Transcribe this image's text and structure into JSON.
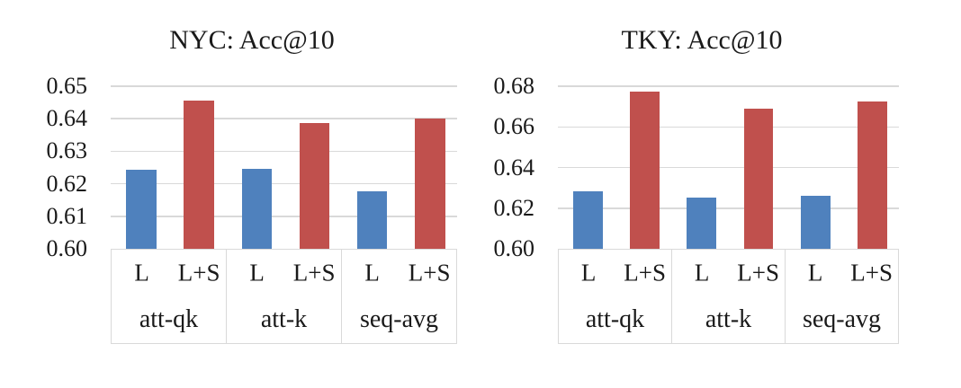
{
  "figure": {
    "background": "#ffffff",
    "text_color": "#1a1a1a",
    "gridline_color": "#d9d9d9"
  },
  "chart_data": [
    {
      "type": "bar",
      "title": "NYC: Acc@10",
      "categories": [
        "att-qk",
        "att-k",
        "seq-avg"
      ],
      "bar_labels": [
        "L",
        "L+S"
      ],
      "series": [
        {
          "name": "L",
          "color": "#4F81BD",
          "values": [
            0.6244,
            0.6247,
            0.6177
          ]
        },
        {
          "name": "L+S",
          "color": "#C0504D",
          "values": [
            0.6455,
            0.6386,
            0.6401
          ]
        }
      ],
      "ylim": [
        0.6,
        0.65
      ],
      "y_ticks": [
        0.65,
        0.64,
        0.63,
        0.62,
        0.61,
        0.6
      ],
      "y_tick_labels": [
        "0.65",
        "0.64",
        "0.63",
        "0.62",
        "0.61",
        "0.60"
      ],
      "grid": true,
      "legend": "none"
    },
    {
      "type": "bar",
      "title": "TKY: Acc@10",
      "categories": [
        "att-qk",
        "att-k",
        "seq-avg"
      ],
      "bar_labels": [
        "L",
        "L+S"
      ],
      "series": [
        {
          "name": "L",
          "color": "#4F81BD",
          "values": [
            0.6285,
            0.6252,
            0.6263
          ]
        },
        {
          "name": "L+S",
          "color": "#C0504D",
          "values": [
            0.6772,
            0.669,
            0.6723
          ]
        }
      ],
      "ylim": [
        0.6,
        0.68
      ],
      "y_ticks": [
        0.68,
        0.66,
        0.64,
        0.62,
        0.6
      ],
      "y_tick_labels": [
        "0.68",
        "0.66",
        "0.64",
        "0.62",
        "0.60"
      ],
      "grid": true,
      "legend": "none"
    }
  ]
}
